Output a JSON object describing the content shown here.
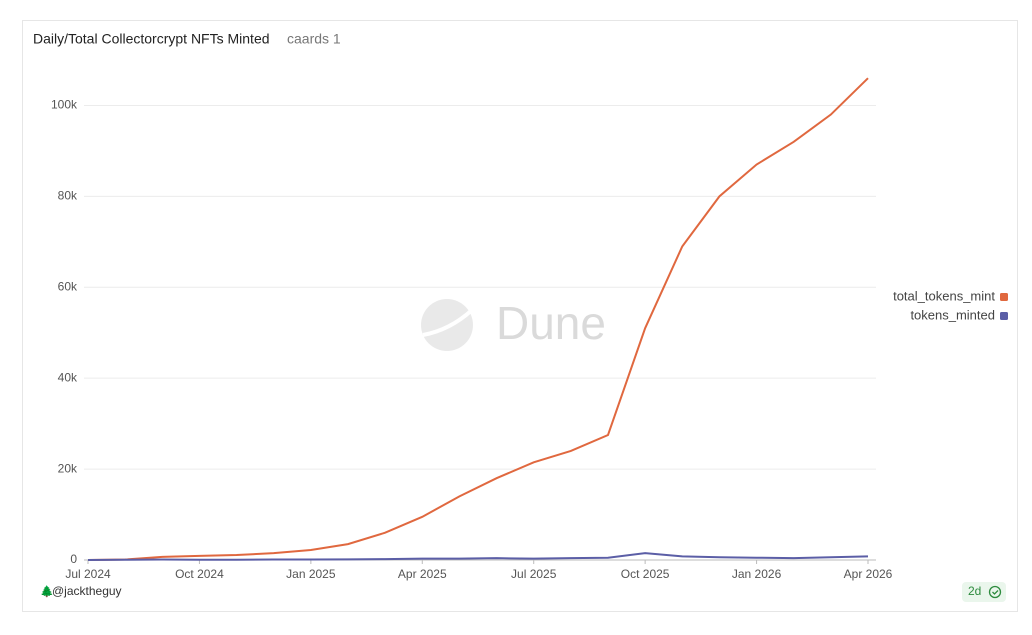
{
  "chart_data": {
    "type": "line",
    "title": "Daily/Total Collectorcrypt NFTs Minted",
    "subtitle": "caards 1",
    "x": [
      "2024-07",
      "2024-08",
      "2024-09",
      "2024-10",
      "2024-11",
      "2024-12",
      "2025-01",
      "2025-02",
      "2025-03",
      "2025-04",
      "2025-05",
      "2025-06",
      "2025-07",
      "2025-08",
      "2025-09",
      "2025-10",
      "2025-11",
      "2025-12",
      "2026-01",
      "2026-02",
      "2026-03",
      "2026-04"
    ],
    "series": [
      {
        "name": "total_tokens_mint",
        "color": "#e0683f",
        "values": [
          0,
          100,
          700,
          900,
          1100,
          1500,
          2200,
          3500,
          6000,
          9500,
          14000,
          18000,
          21500,
          24000,
          27500,
          51000,
          69000,
          80000,
          87000,
          92000,
          98000,
          106000
        ]
      },
      {
        "name": "tokens_minted",
        "color": "#5b5ea6",
        "values": [
          0,
          50,
          100,
          50,
          50,
          100,
          100,
          150,
          200,
          300,
          300,
          400,
          300,
          400,
          500,
          1500,
          800,
          600,
          500,
          400,
          600,
          800
        ]
      }
    ],
    "xlim": [
      "2024-07",
      "2026-04"
    ],
    "xticks": [
      {
        "value": "2024-07",
        "label": "Jul 2024"
      },
      {
        "value": "2024-10",
        "label": "Oct 2024"
      },
      {
        "value": "2025-01",
        "label": "Jan 2025"
      },
      {
        "value": "2025-04",
        "label": "Apr 2025"
      },
      {
        "value": "2025-07",
        "label": "Jul 2025"
      },
      {
        "value": "2025-10",
        "label": "Oct 2025"
      },
      {
        "value": "2026-01",
        "label": "Jan 2026"
      },
      {
        "value": "2026-04",
        "label": "Apr 2026"
      }
    ],
    "ylim": [
      0,
      110000
    ],
    "yticks": [
      0,
      {
        "value": 20000,
        "label": "20k"
      },
      {
        "value": 40000,
        "label": "40k"
      },
      {
        "value": 60000,
        "label": "60k"
      },
      {
        "value": 80000,
        "label": "80k"
      },
      {
        "value": 100000,
        "label": "100k"
      }
    ],
    "grid": true,
    "legend": "right",
    "watermark": "Dune",
    "author": "@jacktheguy",
    "age": "2d"
  }
}
